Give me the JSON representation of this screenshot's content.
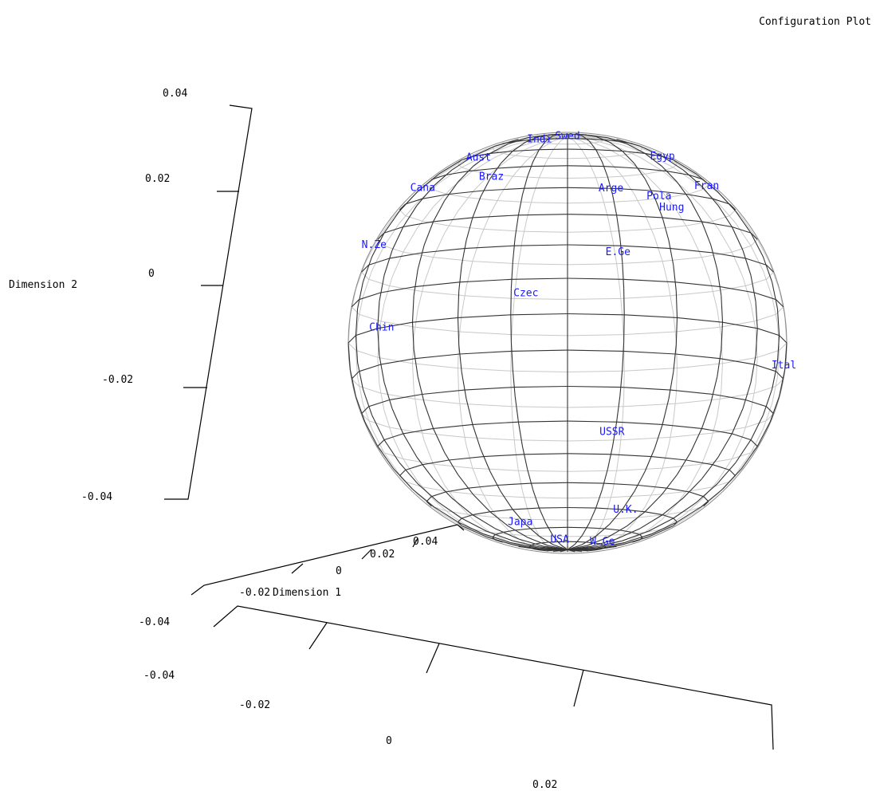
{
  "chart_data": {
    "type": "scatter",
    "title": "Configuration Plot",
    "projection": "3d-wireframe-sphere",
    "axes": {
      "y": {
        "label": "Dimension 2",
        "ticks": [
          "0.04",
          "0.02",
          "0",
          "-0.02",
          "-0.04"
        ]
      },
      "x": {
        "label": "Dimension 1",
        "ticks": [
          "0.04",
          "0.02",
          "0",
          "-0.02",
          "-0.04"
        ]
      },
      "z": {
        "label": "",
        "ticks": [
          "-0.04",
          "-0.02",
          "0",
          "0.02"
        ]
      }
    },
    "points": [
      {
        "label": "Swed",
        "lon": 0,
        "lat": 90
      },
      {
        "label": "Indi",
        "lon": -22,
        "lat": 70
      },
      {
        "label": "Egyp",
        "lon": 60,
        "lat": 60
      },
      {
        "label": "Aust",
        "lon": -50,
        "lat": 58
      },
      {
        "label": "Fran",
        "lon": 66,
        "lat": 46
      },
      {
        "label": "Cana",
        "lon": -72,
        "lat": 46
      },
      {
        "label": "Braz",
        "lon": -30,
        "lat": 46
      },
      {
        "label": "Arge",
        "lon": 15,
        "lat": 40
      },
      {
        "label": "Pola",
        "lon": 32,
        "lat": 38
      },
      {
        "label": "Hung",
        "lon": 35,
        "lat": 34
      },
      {
        "label": "N.Ze",
        "lon": -88,
        "lat": 28
      },
      {
        "label": "E.Ge",
        "lon": 14,
        "lat": 18
      },
      {
        "label": "Czec",
        "lon": -11,
        "lat": 6
      },
      {
        "label": "Chin",
        "lon": -58,
        "lat": 0
      },
      {
        "label": "Ital",
        "lon": 84,
        "lat": -7
      },
      {
        "label": "USSR",
        "lon": 14,
        "lat": -33
      },
      {
        "label": "U.K.",
        "lon": 32,
        "lat": -60
      },
      {
        "label": "Japa",
        "lon": -32,
        "lat": -66
      },
      {
        "label": "USA",
        "lon": -10,
        "lat": -78
      },
      {
        "label": "W.Ge",
        "lon": 50,
        "lat": -78
      }
    ]
  },
  "colors": {
    "label": "#1a1aff",
    "front_wire": "#333333",
    "back_wire": "#c8c8c8",
    "axis": "#000000"
  }
}
